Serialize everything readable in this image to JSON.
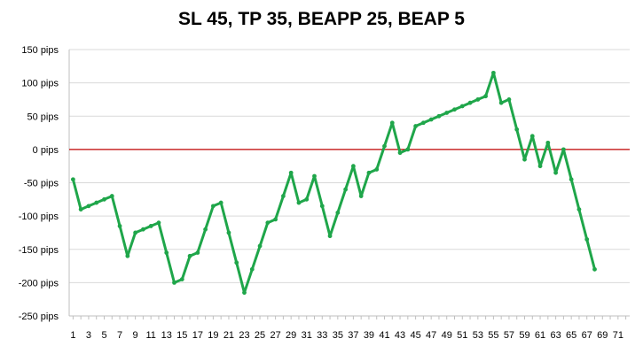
{
  "chart_data": {
    "type": "line",
    "title": "SL 45, TP 35, BEAPP 25, BEAP 5",
    "xlabel": "",
    "ylabel": "",
    "ylim": [
      -250,
      150
    ],
    "y_ticks": [
      150,
      100,
      50,
      0,
      -50,
      -100,
      -150,
      -200,
      -250
    ],
    "y_tick_labels": [
      "150 pips",
      "100 pips",
      "50 pips",
      "0 pips",
      "-50 pips",
      "-100 pips",
      "-150 pips",
      "-200 pips",
      "-250 pips"
    ],
    "xlim": [
      0.5,
      72.5
    ],
    "x_ticks": [
      1,
      3,
      5,
      7,
      9,
      11,
      13,
      15,
      17,
      19,
      21,
      23,
      25,
      27,
      29,
      31,
      33,
      35,
      37,
      39,
      41,
      43,
      45,
      47,
      49,
      51,
      53,
      55,
      57,
      59,
      61,
      63,
      65,
      67,
      69,
      71
    ],
    "grid": true,
    "reference_line": {
      "y": 0,
      "color": "#c00000"
    },
    "line_color": "#1fa64a",
    "series": [
      {
        "x": [
          1,
          2,
          3,
          4,
          5,
          6,
          7,
          8,
          9,
          10,
          11,
          12,
          13,
          14,
          15,
          16,
          17,
          18,
          19,
          20,
          21,
          22,
          23,
          24,
          25,
          26,
          27,
          28,
          29,
          30,
          31,
          32,
          33,
          34,
          35,
          36,
          37,
          38,
          39,
          40,
          41,
          42,
          43,
          44,
          45,
          46,
          47,
          48,
          49,
          50,
          51,
          52,
          53,
          54,
          55,
          56,
          57,
          58,
          59,
          60,
          61,
          62,
          63,
          64,
          65,
          66,
          67,
          68
        ],
        "values": [
          -45,
          -90,
          -85,
          -80,
          -75,
          -70,
          -115,
          -160,
          -125,
          -120,
          -115,
          -110,
          -155,
          -200,
          -195,
          -160,
          -155,
          -120,
          -85,
          -80,
          -125,
          -170,
          -215,
          -180,
          -145,
          -110,
          -105,
          -70,
          -35,
          -80,
          -75,
          -40,
          -85,
          -130,
          -95,
          -60,
          -25,
          -70,
          -35,
          -30,
          5,
          40,
          -5,
          0,
          35,
          40,
          45,
          50,
          55,
          60,
          65,
          70,
          75,
          80,
          115,
          70,
          75,
          30,
          -15,
          20,
          -25,
          10,
          -35,
          0,
          -45,
          -90,
          -135,
          -180
        ]
      }
    ]
  }
}
